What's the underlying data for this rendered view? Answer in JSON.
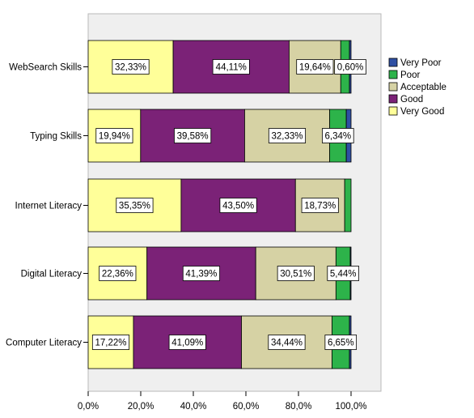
{
  "chart_data": {
    "type": "bar",
    "orientation": "horizontal",
    "stacked": true,
    "categories": [
      "WebSearch Skills",
      "Typing Skills",
      "Internet Literacy",
      "Digital Literacy",
      "Computer Literacy"
    ],
    "series": [
      {
        "name": "Very Good",
        "color": "#ffff99",
        "values": [
          32.33,
          19.94,
          35.35,
          22.36,
          17.22
        ],
        "labels": [
          "32,33%",
          "19,94%",
          "35,35%",
          "22,36%",
          "17,22%"
        ]
      },
      {
        "name": "Good",
        "color": "#7b2277",
        "values": [
          44.11,
          39.58,
          43.5,
          41.39,
          41.09
        ],
        "labels": [
          "44,11%",
          "39,58%",
          "43,50%",
          "41,39%",
          "41,09%"
        ]
      },
      {
        "name": "Acceptable",
        "color": "#d6d2a4",
        "values": [
          19.64,
          32.33,
          18.73,
          30.51,
          34.44
        ],
        "labels": [
          "19,64%",
          "32,33%",
          "18,73%",
          "30,51%",
          "34,44%"
        ]
      },
      {
        "name": "Poor",
        "color": "#2db34a",
        "values": [
          3.32,
          6.34,
          2.42,
          5.44,
          6.65
        ],
        "labels": [
          "",
          "6,34%",
          "",
          "5,44%",
          "6,65%"
        ]
      },
      {
        "name": "Very Poor",
        "color": "#2f4fa3",
        "values": [
          0.6,
          1.81,
          0.0,
          0.3,
          0.6
        ],
        "labels": [
          "0,60%",
          "",
          "",
          "",
          ""
        ]
      }
    ],
    "xticks": [
      "0,0%",
      "20,0%",
      "40,0%",
      "60,0%",
      "80,0%",
      "100,0%"
    ],
    "xlim": [
      0,
      100
    ],
    "legend_order": [
      "Very Poor",
      "Poor",
      "Acceptable",
      "Good",
      "Very Good"
    ],
    "legend_position": "right",
    "plot_background": "#efefef",
    "grid": false
  }
}
